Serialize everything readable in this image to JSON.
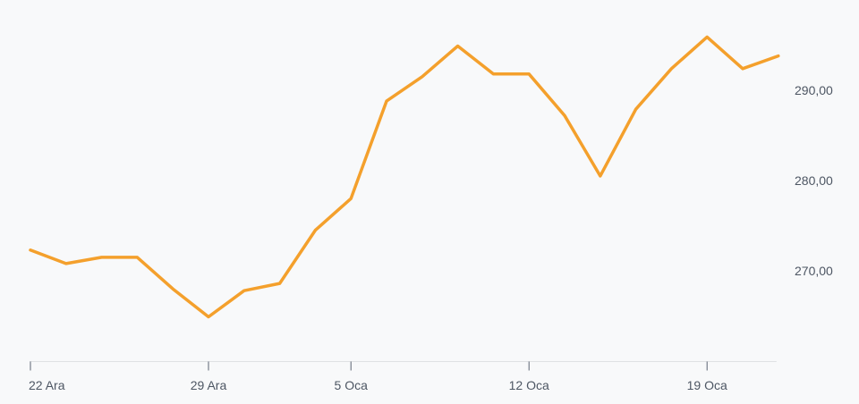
{
  "chart": {
    "background": "#F8F9FA",
    "colors": {
      "line": "#F4A02C",
      "axis_line": "#DFE1E4",
      "tick_mark": "#5A6472",
      "label_text": "#4D5663"
    },
    "chart_data": {
      "type": "line",
      "title": "",
      "xlabel": "",
      "ylabel": "",
      "legend": "none",
      "grid": "off",
      "y_axis_side": "right",
      "y_tick_labels": [
        "290,00",
        "280,00",
        "270,00"
      ],
      "y_tick_values": [
        290,
        280,
        270
      ],
      "y_range_approx": [
        263,
        297
      ],
      "x_tick_labels": [
        "22 Ara",
        "29 Ara",
        "5 Oca",
        "12 Oca",
        "19 Oca"
      ],
      "x_tick_point_indices": [
        0,
        5,
        9,
        14,
        19
      ],
      "series": [
        {
          "color": "#F4A02C",
          "values": [
            272.3,
            270.8,
            271.5,
            271.5,
            268.0,
            264.9,
            267.8,
            268.6,
            274.5,
            278.0,
            288.8,
            291.5,
            294.9,
            291.8,
            291.8,
            287.2,
            280.5,
            287.9,
            292.4,
            295.9,
            292.4,
            293.8
          ]
        }
      ]
    }
  }
}
